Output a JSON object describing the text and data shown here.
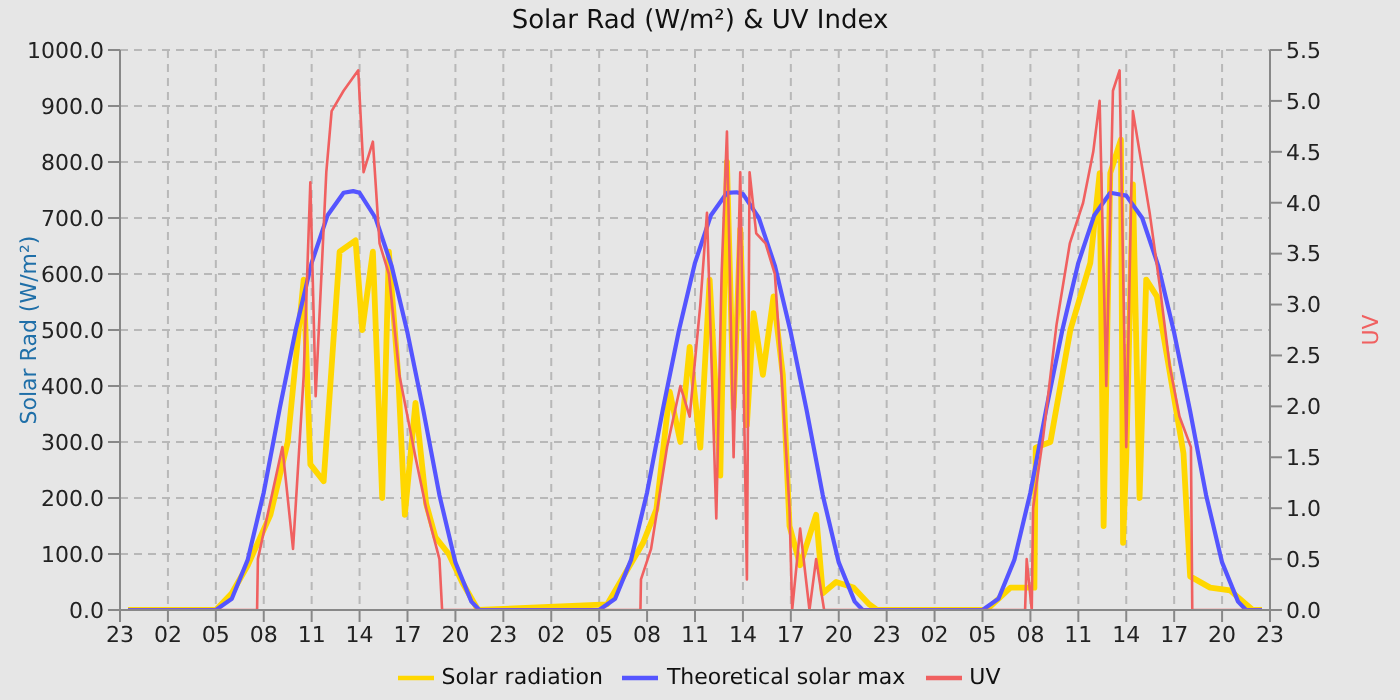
{
  "chart_data": {
    "type": "line",
    "title": "Solar Rad (W/m²) &  UV Index",
    "ylabel": "Solar Rad (W/m²)",
    "y2label": "UV",
    "xlim": [
      "--01-01T23:00",
      "--01-04T23:00"
    ],
    "xticks": [
      {
        "value": "--01-01T23:00",
        "label": "23"
      },
      {
        "value": "--01-02T02:00",
        "label": "02"
      },
      {
        "value": "--01-02T05:00",
        "label": "05"
      },
      {
        "value": "--01-02T08:00",
        "label": "08"
      },
      {
        "value": "--01-02T11:00",
        "label": "11"
      },
      {
        "value": "--01-02T14:00",
        "label": "14"
      },
      {
        "value": "--01-02T17:00",
        "label": "17"
      },
      {
        "value": "--01-02T20:00",
        "label": "20"
      },
      {
        "value": "--01-02T23:00",
        "label": "23"
      },
      {
        "value": "--01-03T02:00",
        "label": "02"
      },
      {
        "value": "--01-03T05:00",
        "label": "05"
      },
      {
        "value": "--01-03T08:00",
        "label": "08"
      },
      {
        "value": "--01-03T11:00",
        "label": "11"
      },
      {
        "value": "--01-03T14:00",
        "label": "14"
      },
      {
        "value": "--01-03T17:00",
        "label": "17"
      },
      {
        "value": "--01-03T20:00",
        "label": "20"
      },
      {
        "value": "--01-03T23:00",
        "label": "23"
      },
      {
        "value": "--01-04T02:00",
        "label": "02"
      },
      {
        "value": "--01-04T05:00",
        "label": "05"
      },
      {
        "value": "--01-04T08:00",
        "label": "08"
      },
      {
        "value": "--01-04T11:00",
        "label": "11"
      },
      {
        "value": "--01-04T14:00",
        "label": "14"
      },
      {
        "value": "--01-04T17:00",
        "label": "17"
      },
      {
        "value": "--01-04T20:00",
        "label": "20"
      },
      {
        "value": "--01-04T23:00",
        "label": "23"
      }
    ],
    "ylim": [
      0,
      1000
    ],
    "yticks": [
      {
        "value": 0,
        "label": "0.0"
      },
      {
        "value": 100,
        "label": "100.0"
      },
      {
        "value": 200,
        "label": "200.0"
      },
      {
        "value": 300,
        "label": "300.0"
      },
      {
        "value": 400,
        "label": "400.0"
      },
      {
        "value": 500,
        "label": "500.0"
      },
      {
        "value": 600,
        "label": "600.0"
      },
      {
        "value": 700,
        "label": "700.0"
      },
      {
        "value": 800,
        "label": "800.0"
      },
      {
        "value": 900,
        "label": "900.0"
      },
      {
        "value": 1000,
        "label": "1000.0"
      }
    ],
    "y2lim": [
      0,
      5.5
    ],
    "y2ticks": [
      {
        "value": 0,
        "label": "0.0"
      },
      {
        "value": 0.5,
        "label": "0.5"
      },
      {
        "value": 1,
        "label": "1.0"
      },
      {
        "value": 1.5,
        "label": "1.5"
      },
      {
        "value": 2,
        "label": "2.0"
      },
      {
        "value": 2.5,
        "label": "2.5"
      },
      {
        "value": 3,
        "label": "3.0"
      },
      {
        "value": 3.5,
        "label": "3.5"
      },
      {
        "value": 4,
        "label": "4.0"
      },
      {
        "value": 4.5,
        "label": "4.5"
      },
      {
        "value": 5,
        "label": "5.0"
      },
      {
        "value": 5.5,
        "label": "5.5"
      }
    ],
    "grid": true,
    "legend": "bottom",
    "marker": "none",
    "series": [
      {
        "name": "Solar radiation",
        "color": "#ffd700",
        "x": [
          "--01-01T23:30",
          "--01-02T05:00",
          "--01-02T06:00",
          "--01-02T07:00",
          "--01-02T08:25",
          "--01-02T09:30",
          "--01-02T10:30",
          "--01-02T10:55",
          "--01-02T11:45",
          "--01-02T12:45",
          "--01-02T13:45",
          "--01-02T14:10",
          "--01-02T14:50",
          "--01-02T15:25",
          "--01-02T15:50",
          "--01-02T16:25",
          "--01-02T16:50",
          "--01-02T17:30",
          "--01-02T18:10",
          "--01-02T18:45",
          "--01-02T19:35",
          "--01-02T20:25",
          "--01-02T21:25",
          "--01-03T05:30",
          "--01-03T07:45",
          "--01-03T08:35",
          "--01-03T09:25",
          "--01-03T10:05",
          "--01-03T10:40",
          "--01-03T11:20",
          "--01-03T11:55",
          "--01-03T12:35",
          "--01-03T13:00",
          "--01-03T13:25",
          "--01-03T13:50",
          "--01-03T14:15",
          "--01-03T14:40",
          "--01-03T15:15",
          "--01-03T15:55",
          "--01-03T16:30",
          "--01-03T16:55",
          "--01-03T17:35",
          "--01-03T18:35",
          "--01-03T19:00",
          "--01-03T19:50",
          "--01-03T20:55",
          "--01-03T21:55",
          "--01-03T22:25",
          "--01-04T05:15",
          "--01-04T06:45",
          "--01-04T08:15",
          "--01-04T08:20",
          "--01-04T09:15",
          "--01-04T10:30",
          "--01-04T11:45",
          "--01-04T12:20",
          "--01-04T12:35",
          "--01-04T13:00",
          "--01-04T13:40",
          "--01-04T13:48",
          "--01-04T14:00",
          "--01-04T14:25",
          "--01-04T14:50",
          "--01-04T15:15",
          "--01-04T15:55",
          "--01-04T16:45",
          "--01-04T17:35",
          "--01-04T18:00",
          "--01-04T19:15",
          "--01-04T20:30",
          "--01-04T21:55",
          "--01-04T22:30"
        ],
        "values": [
          0,
          0,
          30,
          80,
          170,
          300,
          590,
          260,
          230,
          640,
          660,
          500,
          640,
          200,
          640,
          420,
          170,
          370,
          190,
          130,
          100,
          50,
          0,
          10,
          120,
          180,
          390,
          300,
          470,
          290,
          590,
          240,
          800,
          360,
          680,
          330,
          530,
          420,
          560,
          420,
          150,
          80,
          170,
          30,
          50,
          40,
          10,
          0,
          0,
          40,
          40,
          290,
          300,
          500,
          620,
          780,
          150,
          780,
          840,
          120,
          270,
          760,
          200,
          590,
          560,
          420,
          280,
          60,
          40,
          35,
          0,
          0
        ]
      },
      {
        "name": "Theoretical solar max",
        "color": "#5555ff",
        "x": [
          "--01-01T23:30",
          "--01-02T05:00",
          "--01-02T06:00",
          "--01-02T07:00",
          "--01-02T08:00",
          "--01-02T09:00",
          "--01-02T10:00",
          "--01-02T11:00",
          "--01-02T12:00",
          "--01-02T13:00",
          "--01-02T13:36",
          "--01-02T14:00",
          "--01-02T15:00",
          "--01-02T16:00",
          "--01-02T17:00",
          "--01-02T18:00",
          "--01-02T19:00",
          "--01-02T20:00",
          "--01-02T21:00",
          "--01-02T21:30",
          "--01-03T05:00",
          "--01-03T06:00",
          "--01-03T07:00",
          "--01-03T08:00",
          "--01-03T09:00",
          "--01-03T10:00",
          "--01-03T11:00",
          "--01-03T12:00",
          "--01-03T13:00",
          "--01-03T13:36",
          "--01-03T14:00",
          "--01-03T15:00",
          "--01-03T16:00",
          "--01-03T17:00",
          "--01-03T18:00",
          "--01-03T19:00",
          "--01-03T20:00",
          "--01-03T21:00",
          "--01-03T21:30",
          "--01-04T05:00",
          "--01-04T06:00",
          "--01-04T07:00",
          "--01-04T08:00",
          "--01-04T09:00",
          "--01-04T10:00",
          "--01-04T11:00",
          "--01-04T12:00",
          "--01-04T13:00",
          "--01-04T13:36",
          "--01-04T14:00",
          "--01-04T15:00",
          "--01-04T16:00",
          "--01-04T17:00",
          "--01-04T18:00",
          "--01-04T19:00",
          "--01-04T20:00",
          "--01-04T21:00",
          "--01-04T21:30",
          "--01-04T22:30"
        ],
        "values": [
          0,
          0,
          20,
          90,
          210,
          360,
          500,
          620,
          705,
          745,
          748,
          745,
          700,
          615,
          495,
          355,
          205,
          85,
          15,
          0,
          0,
          20,
          90,
          210,
          360,
          500,
          620,
          705,
          745,
          746,
          743,
          700,
          615,
          495,
          355,
          205,
          85,
          15,
          0,
          0,
          20,
          90,
          210,
          360,
          500,
          620,
          705,
          745,
          742,
          740,
          700,
          615,
          495,
          355,
          205,
          85,
          15,
          0,
          0
        ]
      },
      {
        "name": "UV",
        "color": "#f06060",
        "axis": "y2",
        "x": [
          "--01-01T23:30",
          "--01-02T07:35",
          "--01-02T07:38",
          "--01-02T09:10",
          "--01-02T09:50",
          "--01-02T10:30",
          "--01-02T10:55",
          "--01-02T11:15",
          "--01-02T11:55",
          "--01-02T12:15",
          "--01-02T13:00",
          "--01-02T13:55",
          "--01-02T14:15",
          "--01-02T14:50",
          "--01-02T15:15",
          "--01-02T15:50",
          "--01-02T16:30",
          "--01-02T17:30",
          "--01-02T18:10",
          "--01-02T19:00",
          "--01-02T19:10",
          "--01-03T07:35",
          "--01-03T07:37",
          "--01-03T08:15",
          "--01-03T09:15",
          "--01-03T10:05",
          "--01-03T10:40",
          "--01-03T11:20",
          "--01-03T11:45",
          "--01-03T12:20",
          "--01-03T12:40",
          "--01-03T13:00",
          "--01-03T13:25",
          "--01-03T13:50",
          "--01-03T14:15",
          "--01-03T14:25",
          "--01-03T14:50",
          "--01-03T15:25",
          "--01-03T16:00",
          "--01-03T16:30",
          "--01-03T16:55",
          "--01-03T17:05",
          "--01-03T17:35",
          "--01-03T18:10",
          "--01-03T18:35",
          "--01-03T19:05",
          "--01-04T07:40",
          "--01-04T07:46",
          "--01-04T08:05",
          "--01-04T08:10",
          "--01-04T08:48",
          "--01-04T09:38",
          "--01-04T10:28",
          "--01-04T11:18",
          "--01-04T11:56",
          "--01-04T12:20",
          "--01-04T12:45",
          "--01-04T13:10",
          "--01-04T13:35",
          "--01-04T14:00",
          "--01-04T14:25",
          "--01-04T14:50",
          "--01-04T15:28",
          "--01-04T16:05",
          "--01-04T16:43",
          "--01-04T17:20",
          "--01-04T18:03",
          "--01-04T18:08",
          "--01-04T22:30"
        ],
        "values": [
          0,
          0,
          0.5,
          1.6,
          0.6,
          2.3,
          4.2,
          2.1,
          4.3,
          4.9,
          5.1,
          5.3,
          4.3,
          4.6,
          3.6,
          3.3,
          2.3,
          1.5,
          1,
          0.5,
          0,
          0,
          0.3,
          0.6,
          1.6,
          2.2,
          1.9,
          3,
          3.9,
          0.9,
          3.3,
          4.7,
          1.5,
          4.3,
          0.3,
          4.3,
          3.7,
          3.6,
          3.3,
          2.1,
          1,
          0,
          0.8,
          0,
          0.5,
          0,
          0,
          0.5,
          0,
          1,
          1.7,
          2.8,
          3.6,
          4,
          4.5,
          5,
          2.2,
          5.1,
          5.3,
          1.6,
          4.9,
          4.5,
          3.9,
          3.2,
          2.4,
          1.9,
          1.6,
          0,
          0
        ]
      }
    ]
  }
}
